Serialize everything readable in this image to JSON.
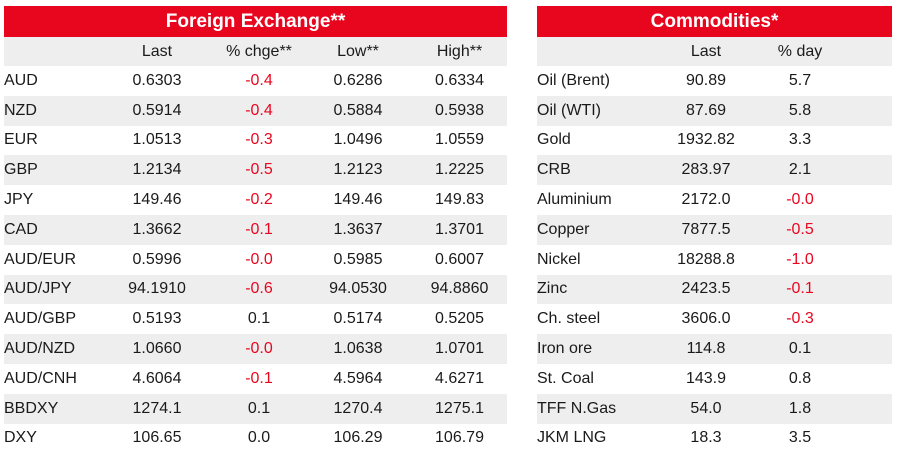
{
  "fx": {
    "title": "Foreign Exchange**",
    "headers": [
      "",
      "Last",
      "% chge**",
      "Low**",
      "High**"
    ],
    "rows": [
      [
        "AUD",
        "0.6303",
        "-0.4",
        "0.6286",
        "0.6334"
      ],
      [
        "NZD",
        "0.5914",
        "-0.4",
        "0.5884",
        "0.5938"
      ],
      [
        "EUR",
        "1.0513",
        "-0.3",
        "1.0496",
        "1.0559"
      ],
      [
        "GBP",
        "1.2134",
        "-0.5",
        "1.2123",
        "1.2225"
      ],
      [
        "JPY",
        "149.46",
        "-0.2",
        "149.46",
        "149.83"
      ],
      [
        "CAD",
        "1.3662",
        "-0.1",
        "1.3637",
        "1.3701"
      ],
      [
        "AUD/EUR",
        "0.5996",
        "-0.0",
        "0.5985",
        "0.6007"
      ],
      [
        "AUD/JPY",
        "94.1910",
        "-0.6",
        "94.0530",
        "94.8860"
      ],
      [
        "AUD/GBP",
        "0.5193",
        "0.1",
        "0.5174",
        "0.5205"
      ],
      [
        "AUD/NZD",
        "1.0660",
        "-0.0",
        "1.0638",
        "1.0701"
      ],
      [
        "AUD/CNH",
        "4.6064",
        "-0.1",
        "4.5964",
        "4.6271"
      ],
      [
        "BBDXY",
        "1274.1",
        "0.1",
        "1270.4",
        "1275.1"
      ],
      [
        "DXY",
        "106.65",
        "0.0",
        "106.29",
        "106.79"
      ]
    ]
  },
  "commodities": {
    "title": "Commodities*",
    "headers": [
      "",
      "Last",
      "% day"
    ],
    "rows": [
      [
        "Oil (Brent)",
        "90.89",
        "5.7"
      ],
      [
        "Oil (WTI)",
        "87.69",
        "5.8"
      ],
      [
        "Gold",
        "1932.82",
        "3.3"
      ],
      [
        "CRB",
        "283.97",
        "2.1"
      ],
      [
        "Aluminium",
        "2172.0",
        "-0.0"
      ],
      [
        "Copper",
        "7877.5",
        "-0.5"
      ],
      [
        "Nickel",
        "18288.8",
        "-1.0"
      ],
      [
        "Zinc",
        "2423.5",
        "-0.1"
      ],
      [
        "Ch. steel",
        "3606.0",
        "-0.3"
      ],
      [
        "Iron ore",
        "114.8",
        "0.1"
      ],
      [
        "St. Coal",
        "143.9",
        "0.8"
      ],
      [
        "TFF N.Gas",
        "54.0",
        "1.8"
      ],
      [
        "JKM LNG",
        "18.3",
        "3.5"
      ]
    ]
  },
  "colors": {
    "accent": "#e8061e",
    "negative": "#e8061e",
    "stripe": "#eeeeee"
  }
}
